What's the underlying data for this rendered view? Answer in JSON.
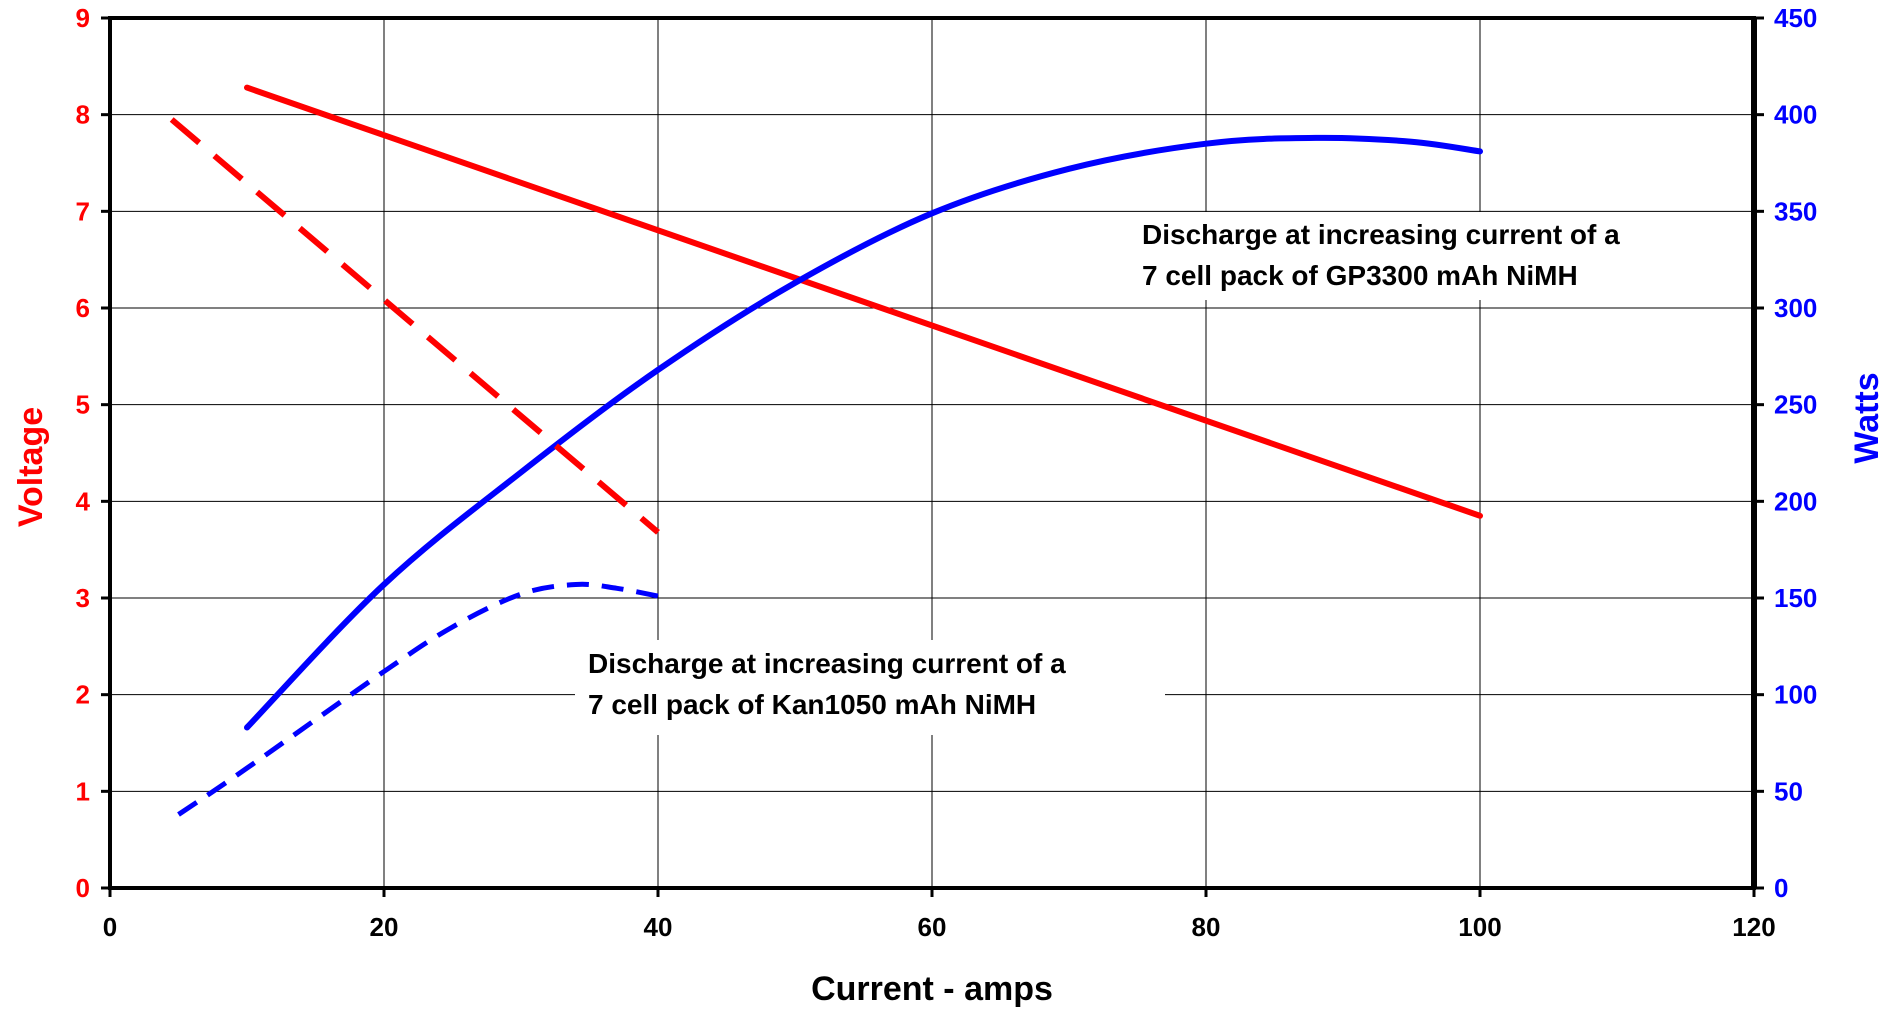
{
  "chart_data": {
    "type": "line",
    "xlabel": "Current - amps",
    "ylabel": "Voltage",
    "y2label": "Watts",
    "xlim": [
      0,
      120
    ],
    "ylim": [
      0,
      9
    ],
    "y2lim": [
      0,
      450
    ],
    "x_ticks": [
      "0",
      "20",
      "40",
      "60",
      "80",
      "100",
      "120"
    ],
    "y_ticks": [
      "0",
      "1",
      "2",
      "3",
      "4",
      "5",
      "6",
      "7",
      "8",
      "9"
    ],
    "y2_ticks": [
      "0",
      "50",
      "100",
      "150",
      "200",
      "250",
      "300",
      "350",
      "400",
      "450"
    ],
    "grid": true,
    "colors": {
      "voltage": "#ff0000",
      "watts": "#0000ff",
      "axis": "#000000"
    },
    "series": [
      {
        "pack": "GP3300",
        "measure": "voltage",
        "axis": "left",
        "style": "solid",
        "x": [
          10,
          100
        ],
        "y": [
          8.28,
          3.85
        ]
      },
      {
        "pack": "GP3300",
        "measure": "watts",
        "axis": "right",
        "style": "solid",
        "x": [
          10,
          20,
          30,
          40,
          50,
          60,
          70,
          80,
          88,
          95,
          100
        ],
        "y": [
          83,
          157,
          215,
          268,
          313,
          349,
          372,
          385,
          388,
          386,
          381
        ]
      },
      {
        "pack": "Kan1050",
        "measure": "voltage",
        "axis": "left",
        "style": "dashed",
        "x": [
          4.5,
          40
        ],
        "y": [
          7.95,
          3.68
        ]
      },
      {
        "pack": "Kan1050",
        "measure": "watts",
        "axis": "right",
        "style": "dashed",
        "x": [
          5,
          10,
          20,
          25,
          30,
          34,
          37,
          40
        ],
        "y": [
          38,
          62,
          112,
          135,
          152,
          157,
          155,
          151
        ]
      }
    ],
    "annotations": [
      {
        "lines": [
          "Discharge at increasing current of a",
          "7 cell pack of GP3300 mAh NiMH"
        ]
      },
      {
        "lines": [
          "Discharge at increasing current of a",
          "7 cell pack of Kan1050 mAh NiMH"
        ]
      }
    ]
  }
}
